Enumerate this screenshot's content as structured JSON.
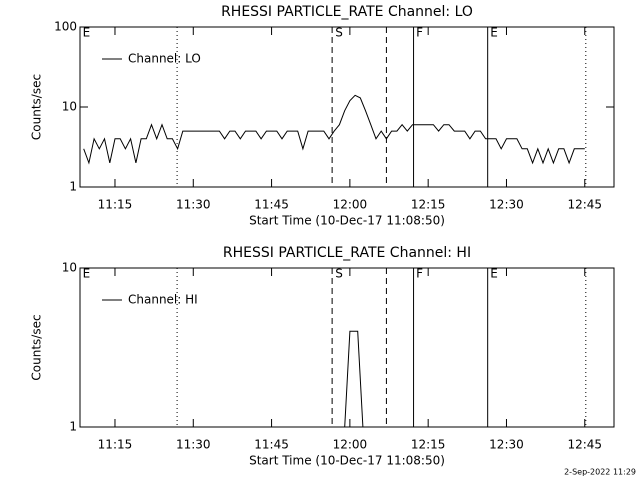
{
  "chart_data": [
    {
      "type": "line",
      "title": "RHESSI PARTICLE_RATE Channel: LO",
      "xlabel": "Start Time (10-Dec-17 11:08:50)",
      "ylabel": "Counts/sec",
      "log_y": true,
      "legend": "upper left",
      "xlim": [
        8.3,
        110.6
      ],
      "ylim": [
        1,
        100
      ],
      "yticks": [
        1,
        10,
        100
      ],
      "xticks": [
        {
          "value": 15,
          "label": "11:15"
        },
        {
          "value": 30,
          "label": "11:30"
        },
        {
          "value": 45,
          "label": "11:45"
        },
        {
          "value": 60,
          "label": "12:00"
        },
        {
          "value": 75,
          "label": "12:15"
        },
        {
          "value": 90,
          "label": "12:30"
        },
        {
          "value": 105,
          "label": "12:45"
        }
      ],
      "vlines": [
        {
          "x": 26.9,
          "style": "dotted"
        },
        {
          "x": 56.6,
          "style": "dashed"
        },
        {
          "x": 67.0,
          "style": "dashed"
        },
        {
          "x": 72.2,
          "style": "solid"
        },
        {
          "x": 86.4,
          "style": "solid"
        },
        {
          "x": 105.2,
          "style": "dotted"
        }
      ],
      "annotations": [
        {
          "text": "E",
          "x": 8.8
        },
        {
          "text": "S",
          "x": 57.2
        },
        {
          "text": "F",
          "x": 72.7
        },
        {
          "text": "E",
          "x": 86.9
        }
      ],
      "series": [
        {
          "name": "Channel: LO",
          "color": "#000000",
          "x": [
            9,
            10,
            11,
            12,
            13,
            14,
            15,
            16,
            17,
            18,
            19,
            20,
            21,
            22,
            23,
            24,
            25,
            26,
            27,
            28,
            29,
            30,
            31,
            32,
            33,
            34,
            35,
            36,
            37,
            38,
            39,
            40,
            41,
            42,
            43,
            44,
            45,
            46,
            47,
            48,
            49,
            50,
            51,
            52,
            53,
            54,
            55,
            56,
            57,
            58,
            59,
            60,
            61,
            62,
            63,
            64,
            65,
            66,
            67,
            68,
            69,
            70,
            71,
            72,
            73,
            74,
            75,
            76,
            77,
            78,
            79,
            80,
            81,
            82,
            83,
            84,
            85,
            86,
            87,
            88,
            89,
            90,
            91,
            92,
            93,
            94,
            95,
            96,
            97,
            98,
            99,
            100,
            101,
            102,
            103,
            104,
            105
          ],
          "values": [
            3,
            2,
            4,
            3,
            4,
            2,
            4,
            4,
            3,
            4,
            2,
            4,
            4,
            6,
            4,
            6,
            4,
            4,
            3,
            5,
            5,
            5,
            5,
            5,
            5,
            5,
            5,
            4,
            5,
            5,
            4,
            5,
            5,
            5,
            4,
            5,
            5,
            5,
            4,
            5,
            5,
            5,
            3,
            5,
            5,
            5,
            5,
            4,
            5,
            6,
            9,
            12,
            14,
            13,
            9,
            6,
            4,
            5,
            4,
            5,
            5,
            6,
            5,
            6,
            6,
            6,
            6,
            6,
            5,
            6,
            6,
            5,
            5,
            5,
            4,
            5,
            5,
            4,
            4,
            4,
            3,
            4,
            4,
            4,
            3,
            3,
            2,
            3,
            2,
            3,
            2,
            3,
            3,
            2,
            3,
            3,
            3
          ]
        }
      ]
    },
    {
      "type": "line",
      "title": "RHESSI PARTICLE_RATE Channel: HI",
      "xlabel": "Start Time (10-Dec-17 11:08:50)",
      "ylabel": "Counts/sec",
      "log_y": true,
      "legend": "upper left",
      "xlim": [
        8.3,
        110.6
      ],
      "ylim": [
        1,
        10
      ],
      "yticks": [
        1,
        10
      ],
      "xticks": [
        {
          "value": 15,
          "label": "11:15"
        },
        {
          "value": 30,
          "label": "11:30"
        },
        {
          "value": 45,
          "label": "11:45"
        },
        {
          "value": 60,
          "label": "12:00"
        },
        {
          "value": 75,
          "label": "12:15"
        },
        {
          "value": 90,
          "label": "12:30"
        },
        {
          "value": 105,
          "label": "12:45"
        }
      ],
      "vlines": [
        {
          "x": 26.9,
          "style": "dotted"
        },
        {
          "x": 56.6,
          "style": "dashed"
        },
        {
          "x": 67.0,
          "style": "dashed"
        },
        {
          "x": 72.2,
          "style": "solid"
        },
        {
          "x": 86.4,
          "style": "solid"
        },
        {
          "x": 105.2,
          "style": "dotted"
        }
      ],
      "annotations": [
        {
          "text": "E",
          "x": 8.8
        },
        {
          "text": "S",
          "x": 57.2
        },
        {
          "text": "F",
          "x": 72.7
        },
        {
          "text": "E",
          "x": 86.9
        }
      ],
      "series": [
        {
          "name": "Channel: HI",
          "color": "#000000",
          "x": [
            59,
            60,
            61.5,
            62.5
          ],
          "values": [
            1,
            4,
            4,
            1
          ]
        }
      ]
    }
  ],
  "footer": "2-Sep-2022 11:29"
}
